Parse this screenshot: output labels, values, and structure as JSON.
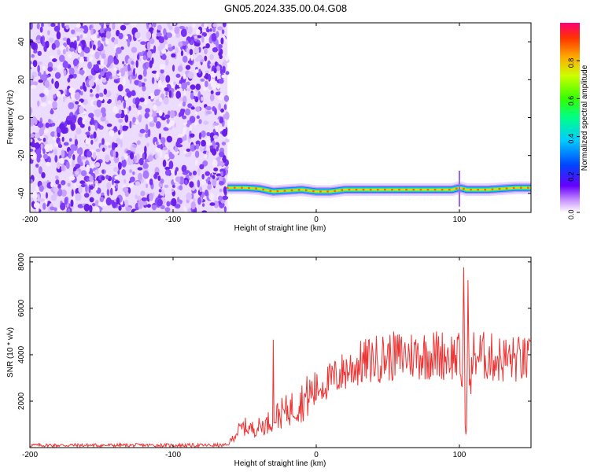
{
  "figure": {
    "title": "GN05.2024.335.00.04.G08"
  },
  "chart_data": [
    {
      "type": "heatmap",
      "title": "GN05.2024.335.00.04.G08",
      "xlabel": "Height of straight line (km)",
      "ylabel": "Frequency (Hz)",
      "xlim": [
        -200,
        150
      ],
      "ylim": [
        -50,
        50
      ],
      "x_ticks": [
        "-200",
        "-100",
        "0",
        "100"
      ],
      "y_ticks": [
        "-40",
        "-20",
        "0",
        "20",
        "40"
      ],
      "noise_region_x": [
        -200,
        -62
      ],
      "signal_ridge": {
        "x": [
          -62,
          -50,
          -40,
          -30,
          -20,
          -10,
          0,
          10,
          20,
          30,
          40,
          50,
          60,
          70,
          80,
          90,
          95,
          100,
          105,
          110,
          120,
          130,
          140,
          150
        ],
        "y": [
          -37,
          -37,
          -37.5,
          -39,
          -38.5,
          -38,
          -39,
          -39,
          -38,
          -38,
          -38,
          -38,
          -38,
          -38,
          -38,
          -38,
          -38,
          -37,
          -38,
          -38,
          -38,
          -37.5,
          -37,
          -37
        ]
      },
      "colorbar": {
        "label": "Normalized spectral amplitude",
        "range": [
          0,
          1
        ],
        "ticks": [
          "0.0",
          "0.2",
          "0.4",
          "0.6",
          "0.8"
        ]
      },
      "grid": false
    },
    {
      "type": "line",
      "xlabel": "Height of straight line (km)",
      "ylabel": "SNR (10 * v/v)",
      "xlim": [
        -200,
        150
      ],
      "ylim": [
        0,
        8200
      ],
      "x_ticks": [
        "-200",
        "-100",
        "0",
        "100"
      ],
      "y_ticks": [
        "2000",
        "4000",
        "6000",
        "8000"
      ],
      "series": [
        {
          "color": "#ee3333",
          "x": [
            -200,
            -150,
            -100,
            -62,
            -55,
            -50,
            -45,
            -35,
            -30,
            -20,
            -10,
            0,
            10,
            20,
            30,
            40,
            50,
            60,
            70,
            80,
            90,
            100,
            102,
            103,
            104,
            105,
            106,
            107,
            110,
            120,
            130,
            140,
            150
          ],
          "y": [
            100,
            100,
            100,
            100,
            700,
            900,
            800,
            1000,
            1300,
            1600,
            2000,
            2500,
            2900,
            3300,
            3600,
            3800,
            3900,
            3950,
            4000,
            4000,
            4000,
            3900,
            2500,
            7900,
            1000,
            700,
            7000,
            2500,
            4000,
            3900,
            3800,
            3800,
            3700
          ]
        }
      ],
      "annotations": [
        {
          "x": -30,
          "y": 4650
        },
        {
          "x": 104,
          "y": 8200
        }
      ],
      "grid": false
    }
  ]
}
